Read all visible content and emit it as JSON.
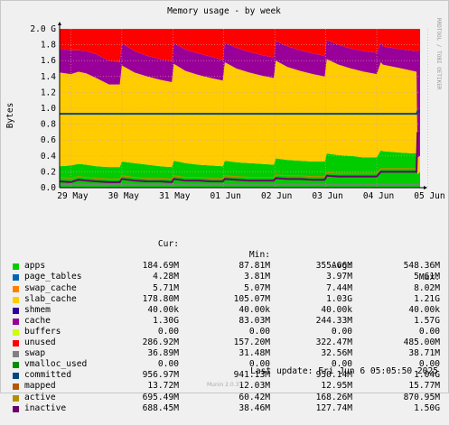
{
  "title": "Memory usage - by week",
  "side_label": "RRDTOOL / TOBI OETIKER",
  "version": "Munin 2.0.37",
  "last_update": "Last update: Fri Jun  6 05:05:50 2025",
  "legend_headers": {
    "cur": "Cur:",
    "min": "Min:",
    "avg": "Avg:",
    "max": "Max:"
  },
  "legend": [
    {
      "name": "apps",
      "color": "#00cc00",
      "cur": "184.69M",
      "min": "87.81M",
      "avg": "355.66M",
      "max": "548.36M"
    },
    {
      "name": "page_tables",
      "color": "#0066b3",
      "cur": "4.28M",
      "min": "3.81M",
      "avg": "3.97M",
      "max": "5.61M"
    },
    {
      "name": "swap_cache",
      "color": "#ff8000",
      "cur": "5.71M",
      "min": "5.07M",
      "avg": "7.44M",
      "max": "8.02M"
    },
    {
      "name": "slab_cache",
      "color": "#ffcc00",
      "cur": "178.80M",
      "min": "105.07M",
      "avg": "1.03G",
      "max": "1.21G"
    },
    {
      "name": "shmem",
      "color": "#330099",
      "cur": "40.00k",
      "min": "40.00k",
      "avg": "40.00k",
      "max": "40.00k"
    },
    {
      "name": "cache",
      "color": "#990099",
      "cur": "1.30G",
      "min": "83.03M",
      "avg": "244.33M",
      "max": "1.57G"
    },
    {
      "name": "buffers",
      "color": "#ccff00",
      "cur": "0.00",
      "min": "0.00",
      "avg": "0.00",
      "max": "0.00"
    },
    {
      "name": "unused",
      "color": "#ff0000",
      "cur": "286.92M",
      "min": "157.20M",
      "avg": "322.47M",
      "max": "485.00M"
    },
    {
      "name": "swap",
      "color": "#808080",
      "cur": "36.89M",
      "min": "31.48M",
      "avg": "32.56M",
      "max": "38.71M"
    },
    {
      "name": "vmalloc_used",
      "color": "#008f00",
      "cur": "0.00",
      "min": "0.00",
      "avg": "0.00",
      "max": "0.00"
    },
    {
      "name": "committed",
      "color": "#00487d",
      "cur": "956.97M",
      "min": "941.13M",
      "avg": "950.14M",
      "max": "1.04G"
    },
    {
      "name": "mapped",
      "color": "#b35a00",
      "cur": "13.72M",
      "min": "12.03M",
      "avg": "12.95M",
      "max": "15.77M"
    },
    {
      "name": "active",
      "color": "#b38f00",
      "cur": "695.49M",
      "min": "60.42M",
      "avg": "168.26M",
      "max": "870.95M"
    },
    {
      "name": "inactive",
      "color": "#6b006b",
      "cur": "688.45M",
      "min": "38.46M",
      "avg": "127.74M",
      "max": "1.50G"
    }
  ],
  "chart_data": {
    "type": "area",
    "title": "Memory usage - by week",
    "ylabel": "Bytes",
    "ylim": [
      0,
      2.0
    ],
    "y_unit": "G",
    "yticks": [
      "0.0",
      "0.2",
      "0.4",
      "0.6",
      "0.8",
      "1.0",
      "1.2",
      "1.4",
      "1.6",
      "1.8",
      "2.0 G"
    ],
    "x_tick_labels": [
      "29 May",
      "30 May",
      "31 May",
      "01 Jun",
      "02 Jun",
      "03 Jun",
      "04 Jun",
      "05 Jun"
    ],
    "x_days": [
      -0.22,
      6.85
    ],
    "stack_boundaries_G": {
      "x_days": [
        -0.22,
        0.0,
        0.15,
        0.3,
        0.5,
        0.75,
        0.96,
        1.0,
        1.25,
        1.5,
        1.75,
        1.98,
        2.02,
        2.25,
        2.5,
        2.75,
        2.98,
        3.02,
        3.25,
        3.5,
        3.75,
        3.98,
        4.02,
        4.25,
        4.5,
        4.75,
        4.98,
        5.02,
        5.25,
        5.5,
        5.75,
        6.0,
        6.08,
        6.12,
        6.5,
        6.78,
        6.8,
        6.85
      ],
      "apps_top": [
        0.27,
        0.28,
        0.3,
        0.29,
        0.27,
        0.26,
        0.26,
        0.33,
        0.31,
        0.29,
        0.27,
        0.26,
        0.34,
        0.31,
        0.29,
        0.28,
        0.27,
        0.34,
        0.32,
        0.31,
        0.3,
        0.29,
        0.37,
        0.35,
        0.34,
        0.33,
        0.33,
        0.43,
        0.41,
        0.4,
        0.38,
        0.38,
        0.47,
        0.46,
        0.44,
        0.43,
        0.17,
        0.2
      ],
      "slab_top": [
        1.45,
        1.43,
        1.46,
        1.44,
        1.38,
        1.3,
        1.3,
        1.54,
        1.45,
        1.4,
        1.36,
        1.33,
        1.56,
        1.47,
        1.42,
        1.38,
        1.35,
        1.58,
        1.5,
        1.45,
        1.41,
        1.38,
        1.6,
        1.52,
        1.47,
        1.43,
        1.4,
        1.62,
        1.55,
        1.5,
        1.46,
        1.43,
        1.58,
        1.55,
        1.5,
        1.46,
        0.38,
        0.4
      ],
      "cache_top": [
        1.75,
        1.73,
        1.73,
        1.72,
        1.68,
        1.6,
        1.58,
        1.82,
        1.72,
        1.66,
        1.62,
        1.59,
        1.82,
        1.74,
        1.69,
        1.65,
        1.61,
        1.83,
        1.76,
        1.71,
        1.67,
        1.64,
        1.85,
        1.78,
        1.73,
        1.69,
        1.66,
        1.86,
        1.8,
        1.75,
        1.72,
        1.7,
        1.82,
        1.78,
        1.74,
        1.72,
        1.72,
        1.73
      ],
      "total": [
        2.0,
        2.0,
        2.0,
        2.0,
        2.0,
        2.0,
        2.0,
        2.0,
        2.0,
        2.0,
        2.0,
        2.0,
        2.0,
        2.0,
        2.0,
        2.0,
        2.0,
        2.0,
        2.0,
        2.0,
        2.0,
        2.0,
        2.0,
        2.0,
        2.0,
        2.0,
        2.0,
        2.0,
        2.0,
        2.0,
        2.0,
        2.0,
        2.0,
        2.0,
        2.0,
        2.0,
        2.0,
        2.0
      ],
      "committed": [
        0.93,
        0.93,
        0.93,
        0.93,
        0.93,
        0.93,
        0.93,
        0.93,
        0.93,
        0.93,
        0.93,
        0.93,
        0.93,
        0.93,
        0.93,
        0.93,
        0.93,
        0.93,
        0.93,
        0.93,
        0.93,
        0.93,
        0.93,
        0.93,
        0.93,
        0.93,
        0.93,
        0.93,
        0.93,
        0.93,
        0.93,
        0.93,
        0.93,
        0.93,
        0.93,
        0.93,
        0.96,
        0.96
      ],
      "inactive": [
        0.08,
        0.07,
        0.1,
        0.09,
        0.08,
        0.07,
        0.07,
        0.11,
        0.09,
        0.08,
        0.08,
        0.07,
        0.11,
        0.09,
        0.09,
        0.08,
        0.08,
        0.11,
        0.1,
        0.09,
        0.09,
        0.09,
        0.12,
        0.11,
        0.11,
        0.1,
        0.1,
        0.15,
        0.14,
        0.14,
        0.14,
        0.14,
        0.2,
        0.2,
        0.2,
        0.2,
        0.69,
        0.69
      ],
      "active": [
        0.13,
        0.12,
        0.14,
        0.13,
        0.12,
        0.11,
        0.11,
        0.15,
        0.13,
        0.12,
        0.12,
        0.11,
        0.15,
        0.13,
        0.13,
        0.12,
        0.12,
        0.15,
        0.14,
        0.13,
        0.13,
        0.13,
        0.16,
        0.15,
        0.15,
        0.14,
        0.14,
        0.19,
        0.18,
        0.18,
        0.18,
        0.18,
        0.24,
        0.24,
        0.24,
        0.24,
        0.7,
        0.7
      ],
      "swap": [
        0.037,
        0.037,
        0.037,
        0.037,
        0.037,
        0.037,
        0.037,
        0.037,
        0.037,
        0.037,
        0.037,
        0.037,
        0.037,
        0.037,
        0.037,
        0.037,
        0.037,
        0.037,
        0.037,
        0.037,
        0.037,
        0.037,
        0.037,
        0.037,
        0.037,
        0.037,
        0.037,
        0.037,
        0.037,
        0.037,
        0.037,
        0.037,
        0.037,
        0.037,
        0.037,
        0.037,
        0.037,
        0.037
      ]
    }
  }
}
